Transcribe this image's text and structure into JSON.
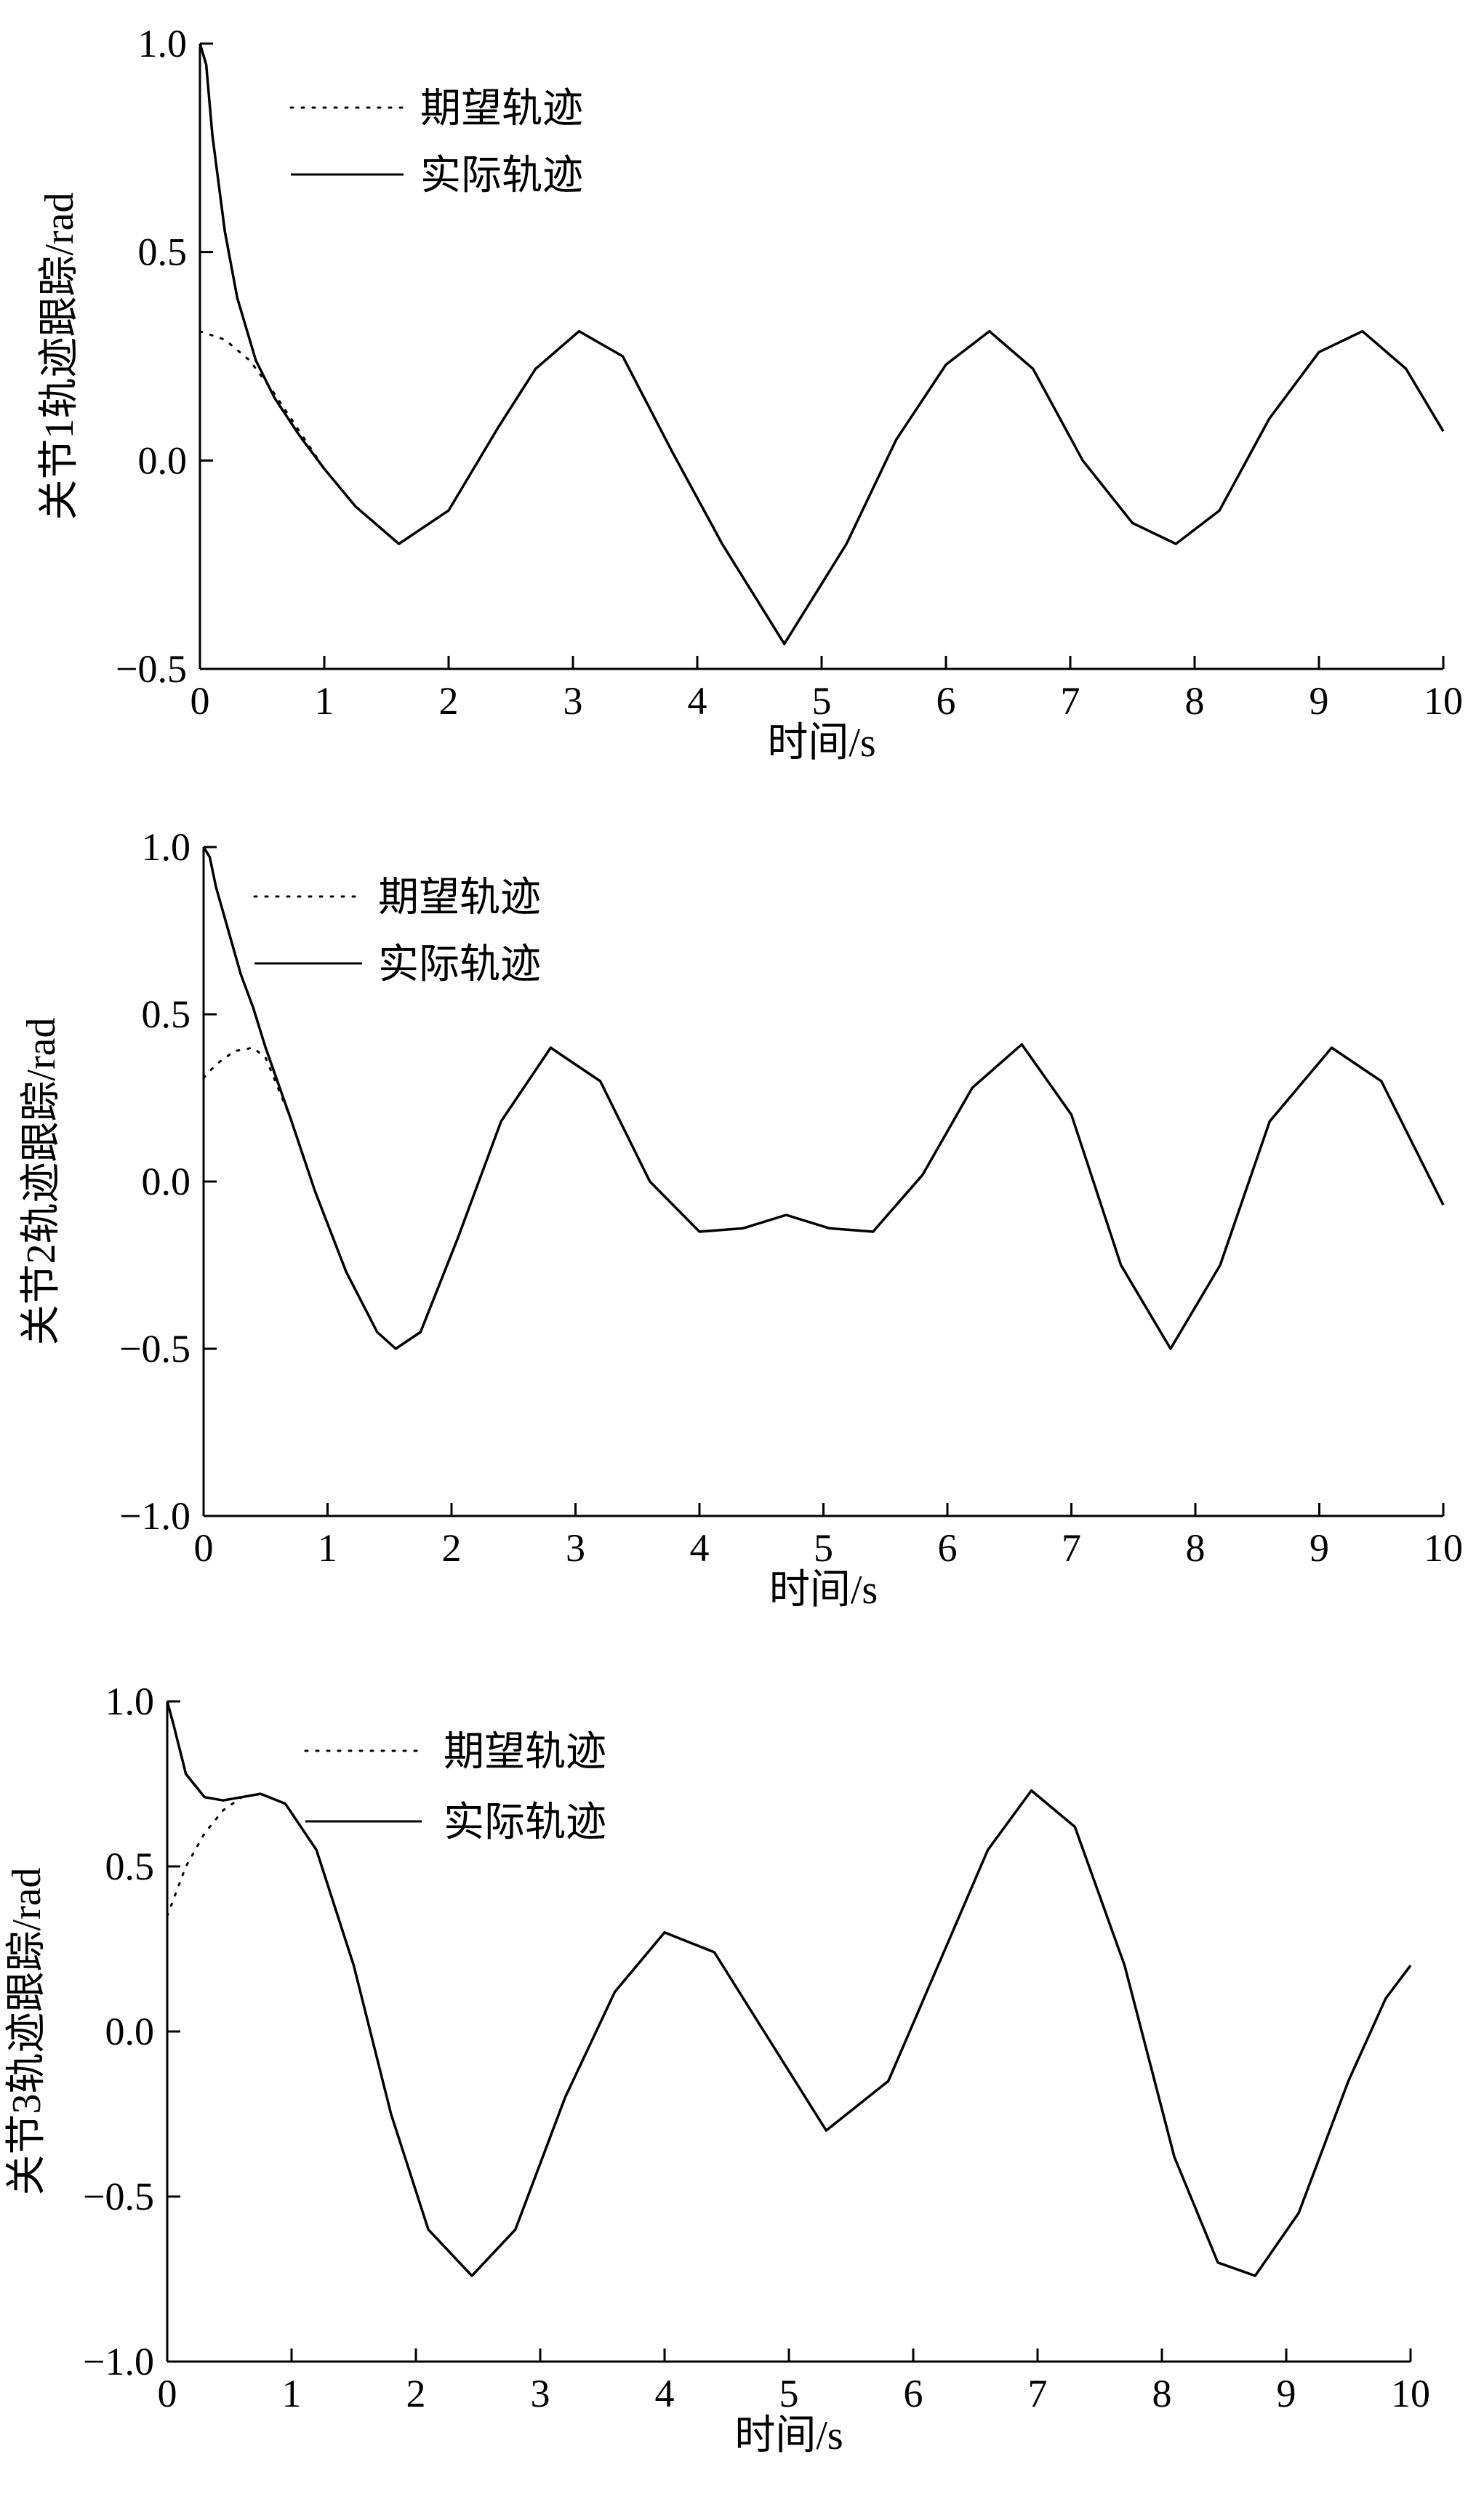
{
  "chart_data": [
    {
      "type": "line",
      "ylabel": "关节1轨迹跟踪/rad",
      "xlabel": "时间/s",
      "xlim": [
        0,
        10
      ],
      "ylim": [
        -0.5,
        1.0
      ],
      "xticks": [
        "0",
        "1",
        "2",
        "3",
        "4",
        "5",
        "6",
        "7",
        "8",
        "9",
        "10"
      ],
      "yticks": [
        "−0.5",
        "0.0",
        "0.5",
        "1.0"
      ],
      "ytick_values": [
        -0.5,
        0.0,
        0.5,
        1.0
      ],
      "grid": false,
      "legend_position": "top-left",
      "series": [
        {
          "name": "期望轨迹",
          "style": "dotted",
          "x": [
            0,
            0.2,
            0.4,
            0.6,
            0.8,
            1.0,
            1.25,
            1.6,
            2.0,
            2.4,
            2.7,
            3.05,
            3.4,
            3.8,
            4.2,
            4.7,
            5.2,
            5.6,
            6.0,
            6.35,
            6.7,
            7.1,
            7.5,
            7.85,
            8.2,
            8.6,
            9.0,
            9.35,
            9.7,
            10.0
          ],
          "values": [
            0.31,
            0.29,
            0.24,
            0.16,
            0.07,
            -0.02,
            -0.11,
            -0.2,
            -0.12,
            0.08,
            0.22,
            0.31,
            0.25,
            0.02,
            -0.2,
            -0.44,
            -0.2,
            0.05,
            0.23,
            0.31,
            0.22,
            0.0,
            -0.15,
            -0.2,
            -0.12,
            0.1,
            0.26,
            0.31,
            0.22,
            0.07
          ]
        },
        {
          "name": "实际轨迹",
          "style": "solid",
          "x": [
            0,
            0.05,
            0.1,
            0.2,
            0.3,
            0.45,
            0.6,
            0.8,
            1.0,
            1.25,
            1.6,
            2.0,
            2.4,
            2.7,
            3.05,
            3.4,
            3.8,
            4.2,
            4.7,
            5.2,
            5.6,
            6.0,
            6.35,
            6.7,
            7.1,
            7.5,
            7.85,
            8.2,
            8.6,
            9.0,
            9.35,
            9.7,
            10.0
          ],
          "values": [
            1.0,
            0.95,
            0.78,
            0.55,
            0.39,
            0.24,
            0.15,
            0.06,
            -0.02,
            -0.11,
            -0.2,
            -0.12,
            0.08,
            0.22,
            0.31,
            0.25,
            0.02,
            -0.2,
            -0.44,
            -0.2,
            0.05,
            0.23,
            0.31,
            0.22,
            0.0,
            -0.15,
            -0.2,
            -0.12,
            0.1,
            0.26,
            0.31,
            0.22,
            0.07
          ]
        }
      ]
    },
    {
      "type": "line",
      "ylabel": "关节2轨迹跟踪/rad",
      "xlabel": "时间/s",
      "xlim": [
        0,
        10
      ],
      "ylim": [
        -1.0,
        1.0
      ],
      "xticks": [
        "0",
        "1",
        "2",
        "3",
        "4",
        "5",
        "6",
        "7",
        "8",
        "9",
        "10"
      ],
      "yticks": [
        "−1.0",
        "−0.5",
        "0.0",
        "0.5",
        "1.0"
      ],
      "ytick_values": [
        -1.0,
        -0.5,
        0.0,
        0.5,
        1.0
      ],
      "grid": false,
      "legend_position": "top-left",
      "series": [
        {
          "name": "期望轨迹",
          "style": "dotted",
          "x": [
            0,
            0.1,
            0.25,
            0.4,
            0.5,
            0.7,
            0.9,
            1.15,
            1.4,
            1.55,
            1.75,
            2.05,
            2.4,
            2.8,
            3.2,
            3.6,
            4.0,
            4.35,
            4.7,
            5.05,
            5.4,
            5.8,
            6.2,
            6.6,
            7.0,
            7.4,
            7.8,
            8.2,
            8.6,
            9.1,
            9.5,
            10.0
          ],
          "values": [
            0.31,
            0.35,
            0.39,
            0.4,
            0.37,
            0.19,
            -0.03,
            -0.27,
            -0.45,
            -0.5,
            -0.45,
            -0.17,
            0.18,
            0.4,
            0.3,
            0.0,
            -0.15,
            -0.14,
            -0.1,
            -0.14,
            -0.15,
            0.02,
            0.28,
            0.41,
            0.2,
            -0.25,
            -0.5,
            -0.25,
            0.18,
            0.4,
            0.3,
            -0.07
          ]
        },
        {
          "name": "实际轨迹",
          "style": "solid",
          "x": [
            0,
            0.05,
            0.1,
            0.2,
            0.3,
            0.4,
            0.5,
            0.7,
            0.9,
            1.15,
            1.4,
            1.55,
            1.75,
            2.05,
            2.4,
            2.8,
            3.2,
            3.6,
            4.0,
            4.35,
            4.7,
            5.05,
            5.4,
            5.8,
            6.2,
            6.6,
            7.0,
            7.4,
            7.8,
            8.2,
            8.6,
            9.1,
            9.5,
            10.0
          ],
          "values": [
            1.0,
            0.97,
            0.88,
            0.75,
            0.62,
            0.52,
            0.4,
            0.19,
            -0.03,
            -0.27,
            -0.45,
            -0.5,
            -0.45,
            -0.17,
            0.18,
            0.4,
            0.3,
            0.0,
            -0.15,
            -0.14,
            -0.1,
            -0.14,
            -0.15,
            0.02,
            0.28,
            0.41,
            0.2,
            -0.25,
            -0.5,
            -0.25,
            0.18,
            0.4,
            0.3,
            -0.07
          ]
        }
      ]
    },
    {
      "type": "line",
      "ylabel": "关节3轨迹跟踪/rad",
      "xlabel": "时间/s",
      "xlim": [
        0,
        10
      ],
      "ylim": [
        -1.0,
        1.0
      ],
      "xticks": [
        "0",
        "1",
        "2",
        "3",
        "4",
        "5",
        "6",
        "7",
        "8",
        "9",
        "10"
      ],
      "yticks": [
        "−1.0",
        "−0.5",
        "0.0",
        "0.5",
        "1.0"
      ],
      "ytick_values": [
        -1.0,
        -0.5,
        0.0,
        0.5,
        1.0
      ],
      "grid": false,
      "legend_position": "top-center",
      "series": [
        {
          "name": "期望轨迹",
          "style": "dotted",
          "x": [
            0,
            0.15,
            0.3,
            0.45,
            0.6,
            0.75,
            0.95,
            1.2,
            1.5,
            1.8,
            2.1,
            2.45,
            2.8,
            3.2,
            3.6,
            4.0,
            4.4,
            4.8,
            5.3,
            5.8,
            6.2,
            6.6,
            6.95,
            7.3,
            7.7,
            8.1,
            8.45,
            8.75,
            9.1,
            9.5,
            9.8,
            10.0
          ],
          "values": [
            0.35,
            0.5,
            0.6,
            0.67,
            0.71,
            0.72,
            0.69,
            0.55,
            0.2,
            -0.25,
            -0.6,
            -0.74,
            -0.6,
            -0.2,
            0.12,
            0.3,
            0.24,
            0.0,
            -0.3,
            -0.15,
            0.2,
            0.55,
            0.73,
            0.62,
            0.2,
            -0.38,
            -0.7,
            -0.74,
            -0.55,
            -0.15,
            0.1,
            0.2
          ]
        },
        {
          "name": "实际轨迹",
          "style": "solid",
          "x": [
            0,
            0.05,
            0.15,
            0.3,
            0.45,
            0.6,
            0.75,
            0.95,
            1.2,
            1.5,
            1.8,
            2.1,
            2.45,
            2.8,
            3.2,
            3.6,
            4.0,
            4.4,
            4.8,
            5.3,
            5.8,
            6.2,
            6.6,
            6.95,
            7.3,
            7.7,
            8.1,
            8.45,
            8.75,
            9.1,
            9.5,
            9.8,
            10.0
          ],
          "values": [
            1.0,
            0.93,
            0.78,
            0.71,
            0.7,
            0.71,
            0.72,
            0.69,
            0.55,
            0.2,
            -0.25,
            -0.6,
            -0.74,
            -0.6,
            -0.2,
            0.12,
            0.3,
            0.24,
            0.0,
            -0.3,
            -0.15,
            0.2,
            0.55,
            0.73,
            0.62,
            0.2,
            -0.38,
            -0.7,
            -0.74,
            -0.55,
            -0.15,
            0.1,
            0.2
          ]
        }
      ]
    }
  ]
}
